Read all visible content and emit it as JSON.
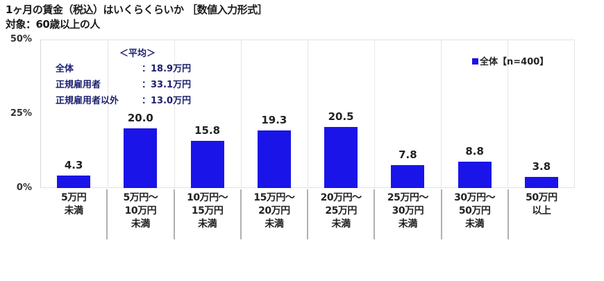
{
  "header": {
    "title": "1ヶ月の賃金（税込）はいくらくらいか ［数値入力形式］",
    "subtitle": "対象：60歳以上の人"
  },
  "y_axis": {
    "ticks": [
      "50%",
      "25%",
      "0%"
    ]
  },
  "average_box": {
    "heading": "＜平均＞",
    "rows": [
      {
        "label": "全体",
        "value": "：18.9万円"
      },
      {
        "label": "正規雇用者",
        "value": "：33.1万円"
      },
      {
        "label": "正規雇用者以外",
        "value": "：13.0万円"
      }
    ]
  },
  "legend": {
    "label": "全体【n=400】",
    "color": "#1a14e8"
  },
  "bars": [
    {
      "value": "4.3",
      "label_lines": [
        "5万円",
        "未満"
      ]
    },
    {
      "value": "20.0",
      "label_lines": [
        "5万円～",
        "10万円",
        "未満"
      ]
    },
    {
      "value": "15.8",
      "label_lines": [
        "10万円～",
        "15万円",
        "未満"
      ]
    },
    {
      "value": "19.3",
      "label_lines": [
        "15万円～",
        "20万円",
        "未満"
      ]
    },
    {
      "value": "20.5",
      "label_lines": [
        "20万円～",
        "25万円",
        "未満"
      ]
    },
    {
      "value": "7.8",
      "label_lines": [
        "25万円～",
        "30万円",
        "未満"
      ]
    },
    {
      "value": "8.8",
      "label_lines": [
        "30万円～",
        "50万円",
        "未満"
      ]
    },
    {
      "value": "3.8",
      "label_lines": [
        "50万円",
        "以上"
      ]
    }
  ],
  "chart_data": {
    "type": "bar",
    "title": "1ヶ月の賃金（税込）はいくらくらいか ［数値入力形式］",
    "subtitle": "対象：60歳以上の人",
    "categories": [
      "5万円未満",
      "5万円～10万円未満",
      "10万円～15万円未満",
      "15万円～20万円未満",
      "20万円～25万円未満",
      "25万円～30万円未満",
      "30万円～50万円未満",
      "50万円以上"
    ],
    "series": [
      {
        "name": "全体【n=400】",
        "values": [
          4.3,
          20.0,
          15.8,
          19.3,
          20.5,
          7.8,
          8.8,
          3.8
        ],
        "color": "#1a14e8"
      }
    ],
    "xlabel": "",
    "ylabel": "",
    "ylim": [
      0,
      50
    ],
    "yticks": [
      "0%",
      "25%",
      "50%"
    ],
    "grid": "vertical category separators",
    "legend_position": "top-right inside plot",
    "annotations": [
      "＜平均＞",
      "全体：18.9万円",
      "正規雇用者：33.1万円",
      "正規雇用者以外：13.0万円"
    ]
  }
}
